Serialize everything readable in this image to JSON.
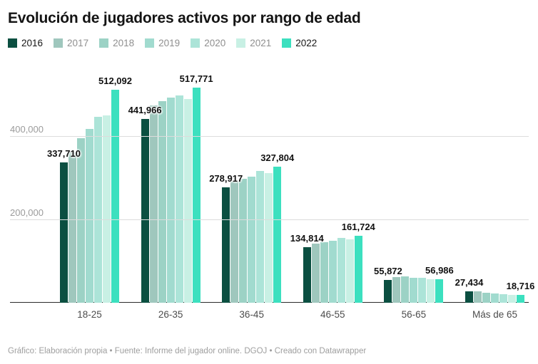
{
  "footer": {
    "text": "Gráfico: Elaboración propia • Fuente: Informe del jugador online. DGOJ • Creado con Datawrapper"
  },
  "chart_data": {
    "type": "bar",
    "title": "Evolución de jugadores activos por rango de edad",
    "legend_position": "top",
    "grid": "horizontal",
    "categories": [
      "18-25",
      "26-35",
      "36-45",
      "46-55",
      "56-65",
      "Más de 65"
    ],
    "ylim": [
      0,
      540000
    ],
    "yticks": [
      {
        "value": 200000,
        "label": "200,000"
      },
      {
        "value": 400000,
        "label": "400,000"
      }
    ],
    "series": [
      {
        "name": "2016",
        "color": "#0b4f41",
        "emphasis": true,
        "values": [
          337710,
          441966,
          278917,
          134814,
          55872,
          27434
        ],
        "value_labels": [
          "337,710",
          "441,966",
          "278,917",
          "134,814",
          "55,872",
          "27,434"
        ]
      },
      {
        "name": "2017",
        "color": "#9fc7bd",
        "values": [
          362000,
          475000,
          291000,
          143000,
          62000,
          28200
        ]
      },
      {
        "name": "2018",
        "color": "#9cd2c5",
        "values": [
          396000,
          486000,
          298000,
          146000,
          63500,
          24000
        ]
      },
      {
        "name": "2019",
        "color": "#a1dbcf",
        "values": [
          419000,
          494000,
          304000,
          150000,
          60500,
          22000
        ]
      },
      {
        "name": "2020",
        "color": "#ace4d8",
        "values": [
          447000,
          499000,
          318000,
          156000,
          60000,
          21000
        ]
      },
      {
        "name": "2021",
        "color": "#c8f0e4",
        "values": [
          452000,
          491000,
          313000,
          153000,
          57500,
          19800
        ]
      },
      {
        "name": "2022",
        "color": "#3ce0bf",
        "emphasis": true,
        "values": [
          512092,
          517771,
          327804,
          161724,
          56986,
          18716
        ],
        "value_labels": [
          "512,092",
          "517,771",
          "327,804",
          "161,724",
          "56,986",
          "18,716"
        ]
      }
    ]
  }
}
